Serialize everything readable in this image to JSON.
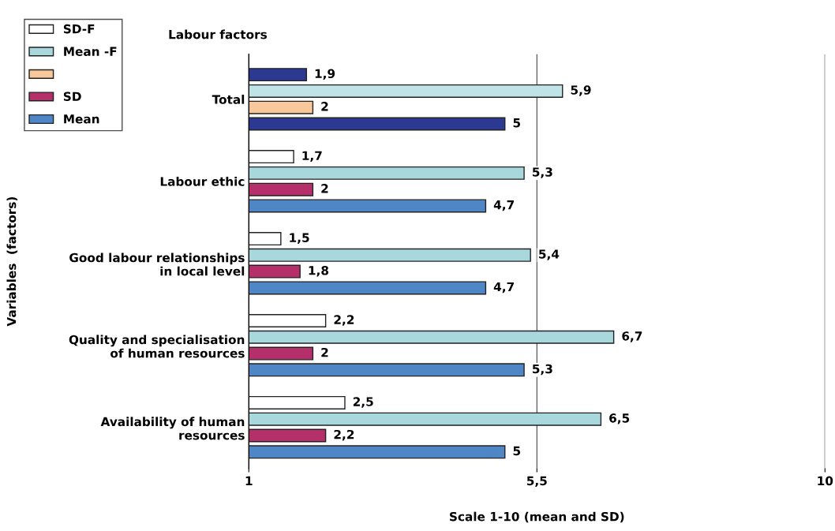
{
  "chart_data": {
    "type": "bar",
    "orientation": "horizontal",
    "title": "Labour factors",
    "xlabel": "Scale 1-10 (mean and SD)",
    "ylabel": "Variables  (factors)",
    "categories": [
      "Total",
      "Labour ethic",
      "Good labour relationships\nin local level",
      "Quality and specialisation\nof human resources",
      "Availability of human\nresources"
    ],
    "series": [
      {
        "name": "SD-F",
        "color": "#ffffff",
        "colors": [
          "#2b3990",
          "#ffffff",
          "#ffffff",
          "#ffffff",
          "#ffffff"
        ],
        "values": [
          1.9,
          1.7,
          1.5,
          2.2,
          2.5
        ],
        "value_labels": [
          "1,9",
          "1,7",
          "1,5",
          "2,2",
          "2,5"
        ]
      },
      {
        "name": "Mean -F",
        "color": "#a8d8dc",
        "colors": [
          "#bfe3e6",
          "#a8d8dc",
          "#a8d8dc",
          "#a8d8dc",
          "#a8d8dc"
        ],
        "values": [
          5.9,
          5.3,
          5.4,
          6.7,
          6.5
        ],
        "value_labels": [
          "5,9",
          "5,3",
          "5,4",
          "6,7",
          "6,5"
        ]
      },
      {
        "color": "#f8c89a",
        "values": [
          2,
          null,
          null,
          null,
          null
        ],
        "value_labels": [
          "2",
          null,
          null,
          null,
          null
        ]
      },
      {
        "name": "SD",
        "color": "#b5306a",
        "values": [
          null,
          2,
          1.8,
          2,
          2.2
        ],
        "value_labels": [
          null,
          "2",
          "1,8",
          "2",
          "2,2"
        ]
      },
      {
        "name": "Mean",
        "color": "#4f86c6",
        "colors": [
          "#2b3990",
          "#4f86c6",
          "#4f86c6",
          "#4f86c6",
          "#4f86c6"
        ],
        "values": [
          5,
          4.7,
          4.7,
          5.3,
          5
        ],
        "value_labels": [
          "5",
          "4,7",
          "4,7",
          "5,3",
          "5"
        ]
      }
    ],
    "xlim": [
      1,
      10
    ],
    "xticks": [
      1,
      {
        "value": 5.5,
        "label": "5,5"
      },
      10
    ],
    "grid": "x",
    "legend": "top left",
    "data_labels": true
  }
}
